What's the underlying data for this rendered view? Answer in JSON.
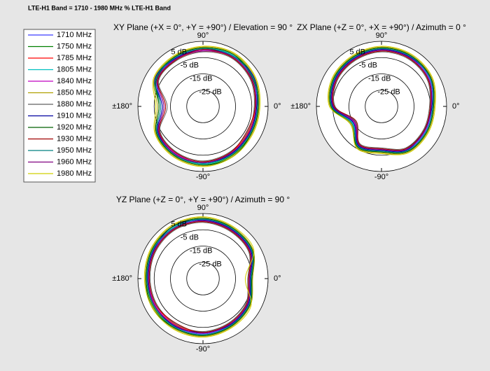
{
  "title": "LTE-H1 Band = 1710 - 1980 MHz % LTE-H1 Band",
  "chart_data": [
    {
      "type": "polar",
      "title": "XY Plane (+X = 0°, +Y = +90°) / Elevation = 90 °",
      "theta": [
        0,
        30,
        60,
        90,
        120,
        150,
        180,
        210,
        240,
        270,
        300,
        330
      ],
      "rlim": [
        -35,
        5
      ],
      "rticks": [
        {
          "value": 5,
          "label": "5 dB"
        },
        {
          "value": -5,
          "label": "-5 dB"
        },
        {
          "value": -15,
          "label": "-15 dB"
        },
        {
          "value": -25,
          "label": "-25 dB"
        }
      ],
      "thetaticks": [
        {
          "value": 0,
          "label": "0°"
        },
        {
          "value": 90,
          "label": "90°"
        },
        {
          "value": 180,
          "label": "±180°"
        },
        {
          "value": -90,
          "label": "-90°"
        }
      ],
      "series": [
        {
          "name": "1710 MHz",
          "color": "#3a3aff",
          "values": [
            -2,
            0,
            1,
            0,
            -1,
            -2,
            -10,
            -3,
            -1,
            0,
            -1,
            -2
          ]
        },
        {
          "name": "1750 MHz",
          "color": "#008000",
          "values": [
            -1,
            1,
            2,
            1,
            0,
            -1,
            -8,
            -2,
            0,
            1,
            0,
            -1
          ]
        },
        {
          "name": "1785 MHz",
          "color": "#ff0000",
          "values": [
            -3,
            -1,
            0,
            -1,
            -2,
            -3,
            -12,
            -4,
            -2,
            -1,
            -2,
            -3
          ]
        },
        {
          "name": "1805 MHz",
          "color": "#00c0c0",
          "values": [
            -1.5,
            0.5,
            1.5,
            0.5,
            -0.5,
            -1.5,
            -9,
            -2.5,
            -0.5,
            0.5,
            -0.5,
            -1.5
          ]
        },
        {
          "name": "1840 MHz",
          "color": "#c000c0",
          "values": [
            -2.5,
            -0.5,
            0.5,
            -0.5,
            -1.5,
            -2.5,
            -11,
            -3.5,
            -1.5,
            -0.5,
            -1.5,
            -2.5
          ]
        },
        {
          "name": "1850 MHz",
          "color": "#b0a000",
          "values": [
            -0.5,
            1.5,
            2.5,
            1.5,
            0.5,
            -0.5,
            -7,
            -1.5,
            0.5,
            1.5,
            0.5,
            -0.5
          ]
        },
        {
          "name": "1880 MHz",
          "color": "#606060",
          "values": [
            -3.5,
            -1.5,
            -0.5,
            -1.5,
            -2.5,
            -3.5,
            -13,
            -4.5,
            -2.5,
            -1.5,
            -2.5,
            -3.5
          ]
        },
        {
          "name": "1910 MHz",
          "color": "#0000a0",
          "values": [
            -2,
            1,
            1,
            0,
            -1,
            -1,
            -10,
            -3,
            -1,
            0,
            -1,
            -2
          ]
        },
        {
          "name": "1920 MHz",
          "color": "#006000",
          "values": [
            -1,
            0,
            2,
            1,
            0,
            -2,
            -8,
            -2,
            0,
            1,
            1,
            -1
          ]
        },
        {
          "name": "1930 MHz",
          "color": "#a00000",
          "values": [
            -3,
            -1,
            0,
            0,
            -2,
            -3,
            -12,
            -4,
            -2,
            -1,
            -2,
            -4
          ]
        },
        {
          "name": "1950 MHz",
          "color": "#008080",
          "values": [
            -1.5,
            0.5,
            1,
            0.5,
            -0.5,
            -1.5,
            -9,
            -2.5,
            -0.5,
            0,
            -0.5,
            -1.5
          ]
        },
        {
          "name": "1960 MHz",
          "color": "#800080",
          "values": [
            -2.5,
            -0.5,
            0.5,
            -1,
            -1.5,
            -2.5,
            -11,
            -3.5,
            -1,
            -0.5,
            -1.5,
            -2.5
          ]
        },
        {
          "name": "1980 MHz",
          "color": "#d0d000",
          "values": [
            0,
            2,
            3,
            2,
            1,
            0,
            -6,
            -1,
            1,
            2,
            1,
            0
          ]
        }
      ]
    },
    {
      "type": "polar",
      "title": "ZX Plane (+Z = 0°, +X = +90°) / Azimuth = 0 °",
      "theta": [
        0,
        30,
        60,
        90,
        120,
        150,
        180,
        210,
        240,
        270,
        300,
        330
      ],
      "rlim": [
        -35,
        5
      ],
      "rticks": [
        {
          "value": 5,
          "label": "5 dB"
        },
        {
          "value": -5,
          "label": "-5 dB"
        },
        {
          "value": -15,
          "label": "-15 dB"
        },
        {
          "value": -25,
          "label": "-25 dB"
        }
      ],
      "thetaticks": [
        {
          "value": 0,
          "label": "0°"
        },
        {
          "value": 90,
          "label": "90°"
        },
        {
          "value": 180,
          "label": "±180°"
        },
        {
          "value": -90,
          "label": "-90°"
        }
      ],
      "series": [
        {
          "color": "#3a3aff",
          "values": [
            -4,
            -1,
            0,
            0,
            -1,
            -2,
            -5,
            -15,
            -7,
            -8,
            -4,
            -4
          ]
        },
        {
          "color": "#008000",
          "values": [
            -3,
            0,
            1,
            1,
            0,
            -1,
            -4,
            -14,
            -6,
            -7,
            -3,
            -3
          ]
        },
        {
          "color": "#ff0000",
          "values": [
            -5,
            -2,
            -1,
            -1,
            -2,
            -3,
            -6,
            -16,
            -8,
            -9,
            -5,
            -5
          ]
        },
        {
          "color": "#00c0c0",
          "values": [
            -3.5,
            -0.5,
            0.5,
            0.5,
            -0.5,
            -1.5,
            -4.5,
            -14.5,
            -6.5,
            -7.5,
            -3.5,
            -3.5
          ]
        },
        {
          "color": "#c000c0",
          "values": [
            -4.5,
            -1.5,
            -0.5,
            -0.5,
            -1.5,
            -2.5,
            -5.5,
            -15.5,
            -7.5,
            -8.5,
            -4.5,
            -4.5
          ]
        },
        {
          "color": "#b0a000",
          "values": [
            -2.5,
            0.5,
            1.5,
            1.5,
            0.5,
            -0.5,
            -3.5,
            -13.5,
            -5.5,
            -6.5,
            -2.5,
            -2.5
          ]
        },
        {
          "color": "#606060",
          "values": [
            -5.5,
            -2.5,
            -1.5,
            -1.5,
            -2.5,
            -3.5,
            -6.5,
            -16.5,
            -8.5,
            -9.5,
            -5.5,
            -5.5
          ]
        },
        {
          "color": "#0000a0",
          "values": [
            -4,
            0,
            0,
            0,
            -1,
            -2,
            -5,
            -15,
            -7,
            -8,
            -4,
            -5
          ]
        },
        {
          "color": "#006000",
          "values": [
            -3,
            0,
            1,
            1,
            0,
            -1,
            -4,
            -13,
            -6,
            -7,
            -3,
            -3
          ]
        },
        {
          "color": "#a00000",
          "values": [
            -5,
            -2,
            -1,
            -1,
            -2,
            -3,
            -6,
            -17,
            -8,
            -9,
            -5,
            -5
          ]
        },
        {
          "color": "#008080",
          "values": [
            -3.5,
            -0.5,
            0.5,
            0.5,
            -0.5,
            -1.5,
            -4.5,
            -14,
            -6.5,
            -7.5,
            -3.5,
            -3.5
          ]
        },
        {
          "color": "#800080",
          "values": [
            -4.5,
            -1.5,
            -0.5,
            -0.5,
            -1.5,
            -2.5,
            -5.5,
            -16,
            -7.5,
            -8.5,
            -4.5,
            -4.5
          ]
        },
        {
          "color": "#d0d000",
          "values": [
            -2,
            1,
            2,
            2,
            1,
            0,
            -3,
            -13,
            -5,
            -6,
            -2,
            -2
          ]
        }
      ]
    },
    {
      "type": "polar",
      "title": "YZ Plane (+Z = 0°, +Y = +90°) / Azimuth = 90 °",
      "theta": [
        0,
        30,
        60,
        90,
        120,
        150,
        180,
        210,
        240,
        270,
        300,
        330
      ],
      "rlim": [
        -35,
        5
      ],
      "rticks": [
        {
          "value": 5,
          "label": "5 dB"
        },
        {
          "value": -5,
          "label": "-5 dB"
        },
        {
          "value": -15,
          "label": "-15 dB"
        },
        {
          "value": -25,
          "label": "-25 dB"
        }
      ],
      "thetaticks": [
        {
          "value": 0,
          "label": "0°"
        },
        {
          "value": 90,
          "label": "90°"
        },
        {
          "value": 180,
          "label": "±180°"
        },
        {
          "value": -90,
          "label": "-90°"
        }
      ],
      "series": [
        {
          "color": "#3a3aff",
          "values": [
            -6,
            -1,
            0,
            1,
            1,
            0,
            -1,
            -1,
            -1,
            -1,
            -2,
            -3
          ]
        },
        {
          "color": "#008000",
          "values": [
            -5,
            0,
            1,
            2,
            2,
            1,
            0,
            0,
            0,
            0,
            -1,
            -2
          ]
        },
        {
          "color": "#ff0000",
          "values": [
            -7,
            -2,
            -1,
            0,
            0,
            -1,
            -2,
            -2,
            -2,
            -2,
            -3,
            -4
          ]
        },
        {
          "color": "#00c0c0",
          "values": [
            -5.5,
            -0.5,
            0.5,
            1.5,
            1.5,
            0.5,
            -0.5,
            -0.5,
            -0.5,
            -0.5,
            -1.5,
            -2.5
          ]
        },
        {
          "color": "#c000c0",
          "values": [
            -6.5,
            -1.5,
            -0.5,
            0.5,
            0.5,
            -0.5,
            -1.5,
            -1.5,
            -1.5,
            -1.5,
            -2.5,
            -3.5
          ]
        },
        {
          "color": "#b0a000",
          "values": [
            -4.5,
            0.5,
            1.5,
            2.5,
            2.5,
            1.5,
            0.5,
            0.5,
            0.5,
            0.5,
            -0.5,
            -1.5
          ]
        },
        {
          "color": "#606060",
          "values": [
            -7.5,
            -2.5,
            -1.5,
            -0.5,
            -0.5,
            -1.5,
            -2.5,
            -2.5,
            -2.5,
            -2.5,
            -3.5,
            -4.5
          ]
        },
        {
          "color": "#0000a0",
          "values": [
            -6,
            -1,
            0,
            1,
            2,
            0,
            -1,
            -1,
            -1,
            -2,
            -2,
            -3
          ]
        },
        {
          "color": "#006000",
          "values": [
            -5,
            0,
            1,
            2,
            2,
            1,
            0,
            1,
            0,
            0,
            -1,
            -2
          ]
        },
        {
          "color": "#a00000",
          "values": [
            -7,
            -2,
            -1,
            0,
            0,
            -1,
            -2,
            -2,
            -3,
            -2,
            -3,
            -4
          ]
        },
        {
          "color": "#008080",
          "values": [
            -5.5,
            -0.5,
            0.5,
            1.5,
            1,
            0.5,
            -0.5,
            -0.5,
            -0.5,
            -0.5,
            -1.5,
            -2.5
          ]
        },
        {
          "color": "#800080",
          "values": [
            -6.5,
            -1.5,
            -0.5,
            0.5,
            0.5,
            -0.5,
            -1.5,
            -1,
            -1.5,
            -1.5,
            -2.5,
            -3.5
          ]
        },
        {
          "color": "#d0d000",
          "values": [
            -9,
            1,
            2,
            3,
            3,
            2,
            1,
            1,
            1,
            1,
            0,
            -1
          ]
        }
      ]
    }
  ]
}
